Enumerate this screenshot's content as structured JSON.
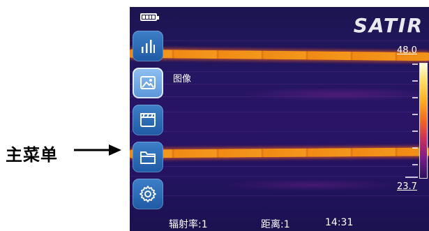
{
  "annotation": {
    "label": "主菜单"
  },
  "brand": "SATIR",
  "menu": {
    "items": [
      {
        "icon": "bar-chart-icon"
      },
      {
        "icon": "image-icon",
        "label": "图像",
        "active": true
      },
      {
        "icon": "video-clapper-icon"
      },
      {
        "icon": "folder-icon"
      },
      {
        "icon": "gear-icon"
      }
    ]
  },
  "scale": {
    "max": "48.0",
    "min": "23.7"
  },
  "status": {
    "emissivity": "辐射率:1",
    "distance": "距离:1",
    "time": "14:31"
  },
  "colors": {
    "menu_button": "#2a66b0",
    "hot_band": "#f08a14",
    "background": "#221660"
  }
}
